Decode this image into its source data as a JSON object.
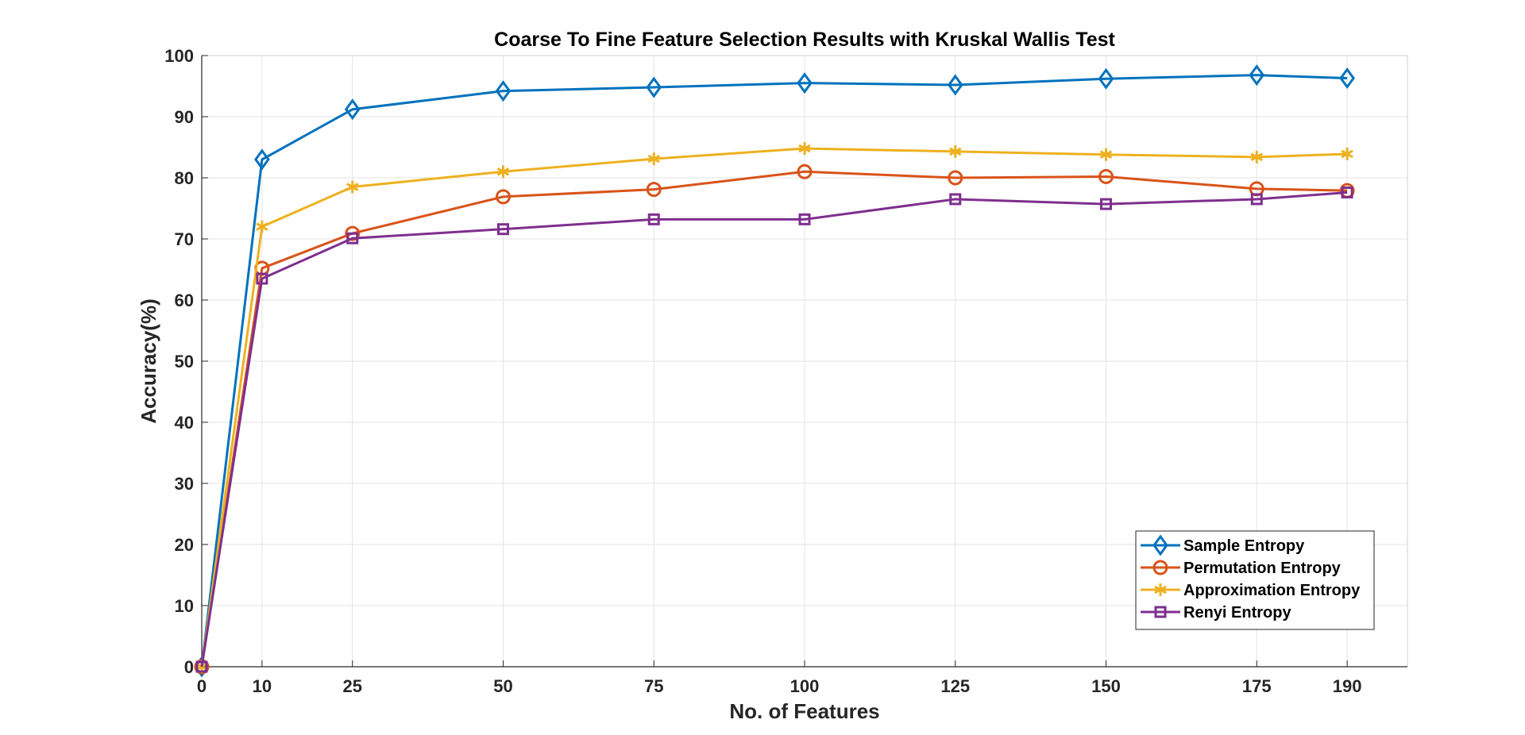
{
  "chart_data": {
    "type": "line",
    "title": "Coarse To Fine Feature Selection Results with Kruskal Wallis Test",
    "xlabel": "No. of Features",
    "ylabel": "Accuracy(%)",
    "x": [
      0,
      10,
      25,
      50,
      75,
      100,
      125,
      150,
      175,
      190
    ],
    "x_ticks": [
      "0",
      "10",
      "25",
      "50",
      "75",
      "100",
      "125",
      "150",
      "175",
      "190"
    ],
    "y_ticks": [
      "0",
      "10",
      "20",
      "30",
      "40",
      "50",
      "60",
      "70",
      "80",
      "90",
      "100"
    ],
    "xlim": [
      0,
      200
    ],
    "ylim": [
      0,
      100
    ],
    "grid": true,
    "legend_position": "bottom-right",
    "series": [
      {
        "name": "Sample Entropy",
        "color": "#0072BD",
        "marker": "diamond",
        "values": [
          0,
          83.0,
          91.2,
          94.2,
          94.8,
          95.5,
          95.2,
          96.2,
          96.8,
          96.3
        ]
      },
      {
        "name": "Permutation Entropy",
        "color": "#D95319",
        "marker": "circle",
        "values": [
          0,
          65.2,
          70.9,
          76.9,
          78.1,
          81.0,
          80.0,
          80.2,
          78.2,
          77.9
        ]
      },
      {
        "name": "Approximation Entropy",
        "color": "#EDB120",
        "marker": "asterisk",
        "values": [
          0,
          72.0,
          78.5,
          81.0,
          83.1,
          84.8,
          84.3,
          83.8,
          83.4,
          83.9
        ]
      },
      {
        "name": "Renyi Entropy",
        "color": "#7E2F8E",
        "marker": "square",
        "values": [
          0,
          63.5,
          70.1,
          71.6,
          73.2,
          73.2,
          76.5,
          75.7,
          76.5,
          77.6
        ]
      }
    ]
  }
}
